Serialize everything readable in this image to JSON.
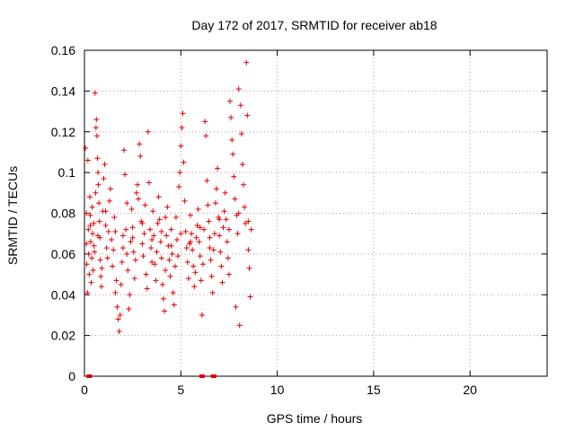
{
  "chart_data": {
    "type": "scatter",
    "title": "Day 172 of 2017, SRMTID for receiver ab18",
    "xlabel": "GPS time / hours",
    "ylabel": "SRMTID / TECUs",
    "xlim": [
      0,
      24
    ],
    "ylim": [
      0,
      0.16
    ],
    "xticks": [
      0,
      5,
      10,
      15,
      20
    ],
    "yticks": [
      0,
      0.02,
      0.04,
      0.06,
      0.08,
      0.1,
      0.12,
      0.14,
      0.16
    ],
    "ytick_labels": [
      "0",
      "0.02",
      "0.04",
      "0.06",
      "0.08",
      "0.1",
      "0.12",
      "0.14",
      "0.16"
    ],
    "xtick_labels": [
      "0",
      "5",
      "10",
      "15",
      "20"
    ],
    "grid": true,
    "marker": "+",
    "color": "#e00000",
    "series": [
      {
        "points": [
          [
            0.05,
            0.112
          ],
          [
            0.1,
            0.08
          ],
          [
            0.1,
            0.065
          ],
          [
            0.12,
            0.055
          ],
          [
            0.15,
            0.041
          ],
          [
            0.18,
            0.106
          ],
          [
            0.2,
            0.072
          ],
          [
            0.22,
            0.06
          ],
          [
            0.25,
            0.05
          ],
          [
            0.28,
            0.088
          ],
          [
            0.3,
            0.079
          ],
          [
            0.32,
            0.066
          ],
          [
            0.35,
            0.046
          ],
          [
            0.38,
            0.058
          ],
          [
            0.4,
            0.083
          ],
          [
            0.42,
            0.07
          ],
          [
            0.45,
            0.052
          ],
          [
            0.48,
            0.075
          ],
          [
            0.5,
            0.064
          ],
          [
            0.52,
            0.061
          ],
          [
            0.55,
            0.139
          ],
          [
            0.58,
            0.09
          ],
          [
            0.6,
            0.122
          ],
          [
            0.62,
            0.126
          ],
          [
            0.65,
            0.118
          ],
          [
            0.68,
            0.107
          ],
          [
            0.7,
            0.1
          ],
          [
            0.72,
            0.094
          ],
          [
            0.75,
            0.085
          ],
          [
            0.78,
            0.076
          ],
          [
            0.8,
            0.068
          ],
          [
            0.82,
            0.057
          ],
          [
            0.85,
            0.049
          ],
          [
            0.88,
            0.044
          ],
          [
            0.9,
            0.053
          ],
          [
            0.95,
            0.081
          ],
          [
            1.0,
            0.097
          ],
          [
            1.05,
            0.104
          ],
          [
            1.1,
            0.074
          ],
          [
            1.15,
            0.063
          ],
          [
            1.2,
            0.058
          ],
          [
            1.25,
            0.071
          ],
          [
            1.3,
            0.086
          ],
          [
            1.35,
            0.092
          ],
          [
            1.4,
            0.067
          ],
          [
            1.45,
            0.054
          ],
          [
            1.5,
            0.062
          ],
          [
            1.55,
            0.078
          ],
          [
            1.6,
            0.041
          ],
          [
            1.65,
            0.047
          ],
          [
            1.7,
            0.034
          ],
          [
            1.75,
            0.028
          ],
          [
            1.8,
            0.022
          ],
          [
            1.85,
            0.03
          ],
          [
            1.9,
            0.045
          ],
          [
            1.95,
            0.056
          ],
          [
            2.0,
            0.069
          ],
          [
            2.05,
            0.111
          ],
          [
            2.1,
            0.099
          ],
          [
            2.15,
            0.072
          ],
          [
            2.2,
            0.06
          ],
          [
            2.25,
            0.052
          ],
          [
            2.3,
            0.033
          ],
          [
            2.35,
            0.04
          ],
          [
            2.4,
            0.066
          ],
          [
            2.45,
            0.082
          ],
          [
            2.5,
            0.073
          ],
          [
            2.55,
            0.061
          ],
          [
            2.6,
            0.048
          ],
          [
            2.65,
            0.057
          ],
          [
            2.7,
            0.09
          ],
          [
            2.75,
            0.094
          ],
          [
            2.8,
            0.087
          ],
          [
            2.85,
            0.114
          ],
          [
            2.9,
            0.108
          ],
          [
            2.95,
            0.076
          ],
          [
            3.0,
            0.065
          ],
          [
            3.05,
            0.059
          ],
          [
            3.1,
            0.07
          ],
          [
            3.15,
            0.084
          ],
          [
            3.2,
            0.05
          ],
          [
            3.25,
            0.043
          ],
          [
            3.3,
            0.12
          ],
          [
            3.35,
            0.095
          ],
          [
            3.4,
            0.072
          ],
          [
            3.45,
            0.063
          ],
          [
            3.5,
            0.056
          ],
          [
            3.55,
            0.081
          ],
          [
            3.6,
            0.069
          ],
          [
            3.65,
            0.055
          ],
          [
            3.7,
            0.047
          ],
          [
            3.75,
            0.061
          ],
          [
            3.8,
            0.075
          ],
          [
            3.85,
            0.088
          ],
          [
            3.9,
            0.077
          ],
          [
            3.95,
            0.066
          ],
          [
            4.0,
            0.058
          ],
          [
            4.05,
            0.045
          ],
          [
            4.1,
            0.038
          ],
          [
            4.15,
            0.032
          ],
          [
            4.2,
            0.052
          ],
          [
            4.25,
            0.069
          ],
          [
            4.3,
            0.083
          ],
          [
            4.35,
            0.064
          ],
          [
            4.4,
            0.057
          ],
          [
            4.45,
            0.049
          ],
          [
            4.5,
            0.072
          ],
          [
            4.55,
            0.06
          ],
          [
            4.6,
            0.041
          ],
          [
            4.65,
            0.035
          ],
          [
            4.7,
            0.054
          ],
          [
            4.75,
            0.078
          ],
          [
            4.8,
            0.067
          ],
          [
            4.85,
            0.059
          ],
          [
            4.9,
            0.093
          ],
          [
            4.95,
            0.1
          ],
          [
            5.0,
            0.113
          ],
          [
            5.05,
            0.122
          ],
          [
            5.1,
            0.129
          ],
          [
            5.15,
            0.105
          ],
          [
            5.2,
            0.086
          ],
          [
            5.25,
            0.071
          ],
          [
            5.3,
            0.063
          ],
          [
            5.35,
            0.056
          ],
          [
            5.4,
            0.048
          ],
          [
            5.45,
            0.065
          ],
          [
            5.5,
            0.079
          ],
          [
            5.55,
            0.07
          ],
          [
            5.6,
            0.062
          ],
          [
            5.65,
            0.054
          ],
          [
            5.7,
            0.044
          ],
          [
            5.75,
            0.051
          ],
          [
            5.8,
            0.068
          ],
          [
            5.85,
            0.074
          ],
          [
            5.9,
            0.082
          ],
          [
            5.95,
            0.066
          ],
          [
            6.0,
            0.059
          ],
          [
            6.05,
            0.047
          ],
          [
            6.1,
            0.03
          ],
          [
            6.15,
            0.055
          ],
          [
            6.2,
            0.072
          ],
          [
            6.25,
            0.125
          ],
          [
            6.3,
            0.118
          ],
          [
            6.35,
            0.096
          ],
          [
            6.4,
            0.084
          ],
          [
            6.45,
            0.076
          ],
          [
            6.5,
            0.063
          ],
          [
            6.55,
            0.057
          ],
          [
            6.6,
            0.049
          ],
          [
            6.65,
            0.041
          ],
          [
            6.7,
            0.062
          ],
          [
            6.75,
            0.07
          ],
          [
            6.8,
            0.085
          ],
          [
            6.85,
            0.092
          ],
          [
            6.9,
            0.102
          ],
          [
            6.95,
            0.078
          ],
          [
            7.0,
            0.069
          ],
          [
            7.05,
            0.061
          ],
          [
            7.1,
            0.054
          ],
          [
            7.15,
            0.046
          ],
          [
            7.2,
            0.073
          ],
          [
            7.25,
            0.081
          ],
          [
            7.3,
            0.09
          ],
          [
            7.35,
            0.077
          ],
          [
            7.4,
            0.066
          ],
          [
            7.45,
            0.058
          ],
          [
            7.5,
            0.05
          ],
          [
            7.55,
            0.135
          ],
          [
            7.6,
            0.127
          ],
          [
            7.65,
            0.116
          ],
          [
            7.7,
            0.109
          ],
          [
            7.75,
            0.098
          ],
          [
            7.8,
            0.087
          ],
          [
            7.85,
            0.034
          ],
          [
            7.9,
            0.079
          ],
          [
            7.95,
            0.07
          ],
          [
            8.0,
            0.141
          ],
          [
            8.05,
            0.025
          ],
          [
            8.1,
            0.133
          ],
          [
            8.15,
            0.119
          ],
          [
            8.2,
            0.104
          ],
          [
            8.25,
            0.094
          ],
          [
            8.3,
            0.083
          ],
          [
            8.35,
            0.075
          ],
          [
            8.4,
            0.154
          ],
          [
            8.45,
            0.128
          ],
          [
            8.5,
            0.062
          ],
          [
            8.55,
            0.053
          ],
          [
            8.6,
            0.039
          ],
          [
            8.65,
            0.072
          ],
          [
            0.3,
            0.074
          ],
          [
            0.7,
            0.069
          ],
          [
            1.1,
            0.081
          ],
          [
            1.6,
            0.071
          ],
          [
            2.0,
            0.063
          ],
          [
            2.5,
            0.068
          ],
          [
            3.0,
            0.075
          ],
          [
            3.5,
            0.067
          ],
          [
            4.0,
            0.071
          ],
          [
            4.5,
            0.064
          ],
          [
            5.0,
            0.07
          ],
          [
            5.5,
            0.066
          ],
          [
            6.0,
            0.073
          ],
          [
            6.5,
            0.068
          ],
          [
            7.0,
            0.077
          ],
          [
            7.5,
            0.072
          ],
          [
            8.0,
            0.08
          ],
          [
            8.5,
            0.076
          ],
          [
            2.2,
            0.085
          ],
          [
            4.2,
            0.078
          ]
        ]
      }
    ],
    "baseline_hours": [
      0.25,
      6.1,
      6.7
    ]
  }
}
